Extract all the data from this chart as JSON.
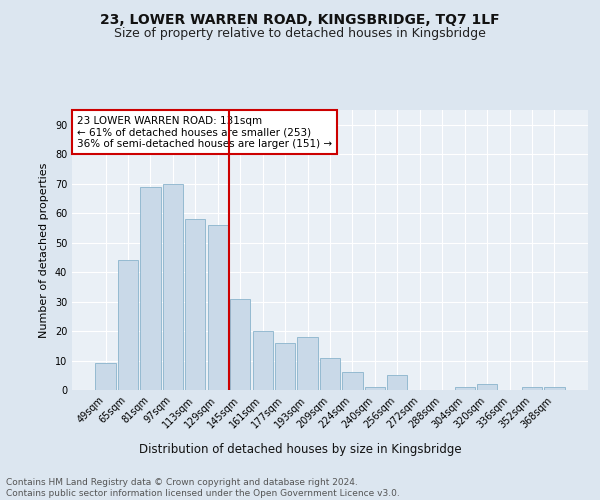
{
  "title": "23, LOWER WARREN ROAD, KINGSBRIDGE, TQ7 1LF",
  "subtitle": "Size of property relative to detached houses in Kingsbridge",
  "xlabel": "Distribution of detached houses by size in Kingsbridge",
  "ylabel": "Number of detached properties",
  "bar_labels": [
    "49sqm",
    "65sqm",
    "81sqm",
    "97sqm",
    "113sqm",
    "129sqm",
    "145sqm",
    "161sqm",
    "177sqm",
    "193sqm",
    "209sqm",
    "224sqm",
    "240sqm",
    "256sqm",
    "272sqm",
    "288sqm",
    "304sqm",
    "320sqm",
    "336sqm",
    "352sqm",
    "368sqm"
  ],
  "bar_values": [
    9,
    44,
    69,
    70,
    58,
    56,
    31,
    20,
    16,
    18,
    11,
    6,
    1,
    5,
    0,
    0,
    1,
    2,
    0,
    1,
    1
  ],
  "bar_color": "#c9d9e8",
  "bar_edgecolor": "#8ab4cc",
  "vline_x": 5.5,
  "vline_color": "#cc0000",
  "annotation_text": "23 LOWER WARREN ROAD: 131sqm\n← 61% of detached houses are smaller (253)\n36% of semi-detached houses are larger (151) →",
  "annotation_box_facecolor": "white",
  "annotation_box_edgecolor": "#cc0000",
  "ylim": [
    0,
    95
  ],
  "yticks": [
    0,
    10,
    20,
    30,
    40,
    50,
    60,
    70,
    80,
    90
  ],
  "background_color": "#dce6f0",
  "plot_bg_color": "#eaf0f6",
  "grid_color": "#ffffff",
  "footer_text": "Contains HM Land Registry data © Crown copyright and database right 2024.\nContains public sector information licensed under the Open Government Licence v3.0.",
  "title_fontsize": 10,
  "subtitle_fontsize": 9,
  "xlabel_fontsize": 8.5,
  "ylabel_fontsize": 8,
  "tick_fontsize": 7,
  "annotation_fontsize": 7.5,
  "footer_fontsize": 6.5
}
